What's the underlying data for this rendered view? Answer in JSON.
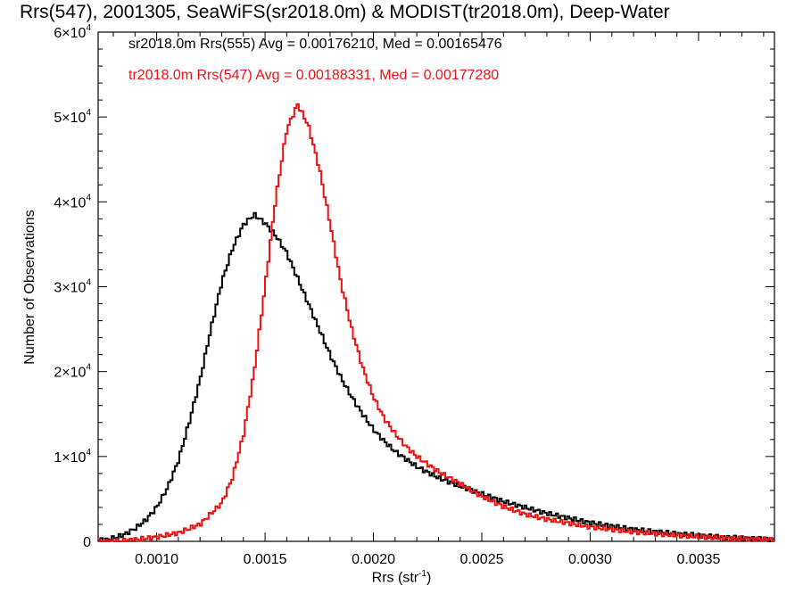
{
  "chart_data": {
    "type": "line",
    "title": "Rrs(547), 2001305, SeaWiFS(sr2018.0m) & MODIST(tr2018.0m), Deep-Water",
    "xlabel": "Rrs (str",
    "xlabel_sup": "-1",
    "xlabel_end": ")",
    "ylabel": "Number of Observations",
    "xlim": [
      0.00073,
      0.00385
    ],
    "ylim": [
      0,
      60000
    ],
    "xticks": [
      {
        "value": 0.001,
        "label": "0.0010"
      },
      {
        "value": 0.0015,
        "label": "0.0015"
      },
      {
        "value": 0.002,
        "label": "0.0020"
      },
      {
        "value": 0.0025,
        "label": "0.0025"
      },
      {
        "value": 0.003,
        "label": "0.0030"
      },
      {
        "value": 0.0035,
        "label": "0.0035"
      }
    ],
    "yticks": [
      {
        "value": 0,
        "label": "0",
        "exp": ""
      },
      {
        "value": 10000,
        "label": "1×10",
        "exp": "4"
      },
      {
        "value": 20000,
        "label": "2×10",
        "exp": "4"
      },
      {
        "value": 30000,
        "label": "3×10",
        "exp": "4"
      },
      {
        "value": 40000,
        "label": "4×10",
        "exp": "4"
      },
      {
        "value": 50000,
        "label": "5×10",
        "exp": "4"
      },
      {
        "value": 60000,
        "label": "6×10",
        "exp": "4"
      }
    ],
    "grid": false,
    "legend_position": "top-left",
    "series": [
      {
        "name": "sr2018.0m Rrs(555) Avg = 0.00176210, Med = 0.00165476",
        "color": "#000000",
        "x": [
          0.00078,
          0.0008,
          0.00085,
          0.0009,
          0.00095,
          0.001,
          0.00105,
          0.0011,
          0.00115,
          0.0012,
          0.00125,
          0.0013,
          0.00135,
          0.0014,
          0.00145,
          0.0015,
          0.00155,
          0.0016,
          0.00165,
          0.0017,
          0.00175,
          0.0018,
          0.00185,
          0.0019,
          0.00195,
          0.002,
          0.00205,
          0.0021,
          0.0022,
          0.0023,
          0.0024,
          0.0025,
          0.0026,
          0.0027,
          0.0028,
          0.003,
          0.0032,
          0.0034,
          0.0036,
          0.00385
        ],
        "y": [
          200,
          400,
          800,
          1500,
          2500,
          4000,
          6300,
          9500,
          14000,
          19000,
          25000,
          30500,
          34500,
          37300,
          38500,
          37500,
          36000,
          34000,
          31000,
          28000,
          25000,
          22000,
          19300,
          17000,
          15000,
          13200,
          11800,
          10600,
          8800,
          7500,
          6500,
          5600,
          4700,
          4000,
          3300,
          2200,
          1400,
          900,
          500,
          200
        ]
      },
      {
        "name": "tr2018.0m Rrs(547) Avg = 0.00188331, Med = 0.00177280",
        "color": "#ee1111",
        "x": [
          0.0008,
          0.0009,
          0.001,
          0.0011,
          0.0012,
          0.0013,
          0.00135,
          0.0014,
          0.00145,
          0.0015,
          0.00155,
          0.0016,
          0.00165,
          0.0017,
          0.00175,
          0.0018,
          0.00185,
          0.0019,
          0.00195,
          0.002,
          0.00205,
          0.0021,
          0.00215,
          0.0022,
          0.0023,
          0.0024,
          0.0025,
          0.0026,
          0.0027,
          0.0028,
          0.003,
          0.0032,
          0.0034,
          0.0036,
          0.00385
        ],
        "y": [
          0,
          200,
          500,
          1000,
          2000,
          4500,
          7500,
          12500,
          20000,
          30000,
          40500,
          48500,
          51500,
          49000,
          44000,
          37500,
          30500,
          25000,
          20500,
          17000,
          14500,
          12700,
          11200,
          10000,
          8200,
          6800,
          5300,
          4100,
          3200,
          2600,
          1700,
          1100,
          700,
          400,
          200
        ]
      }
    ]
  }
}
